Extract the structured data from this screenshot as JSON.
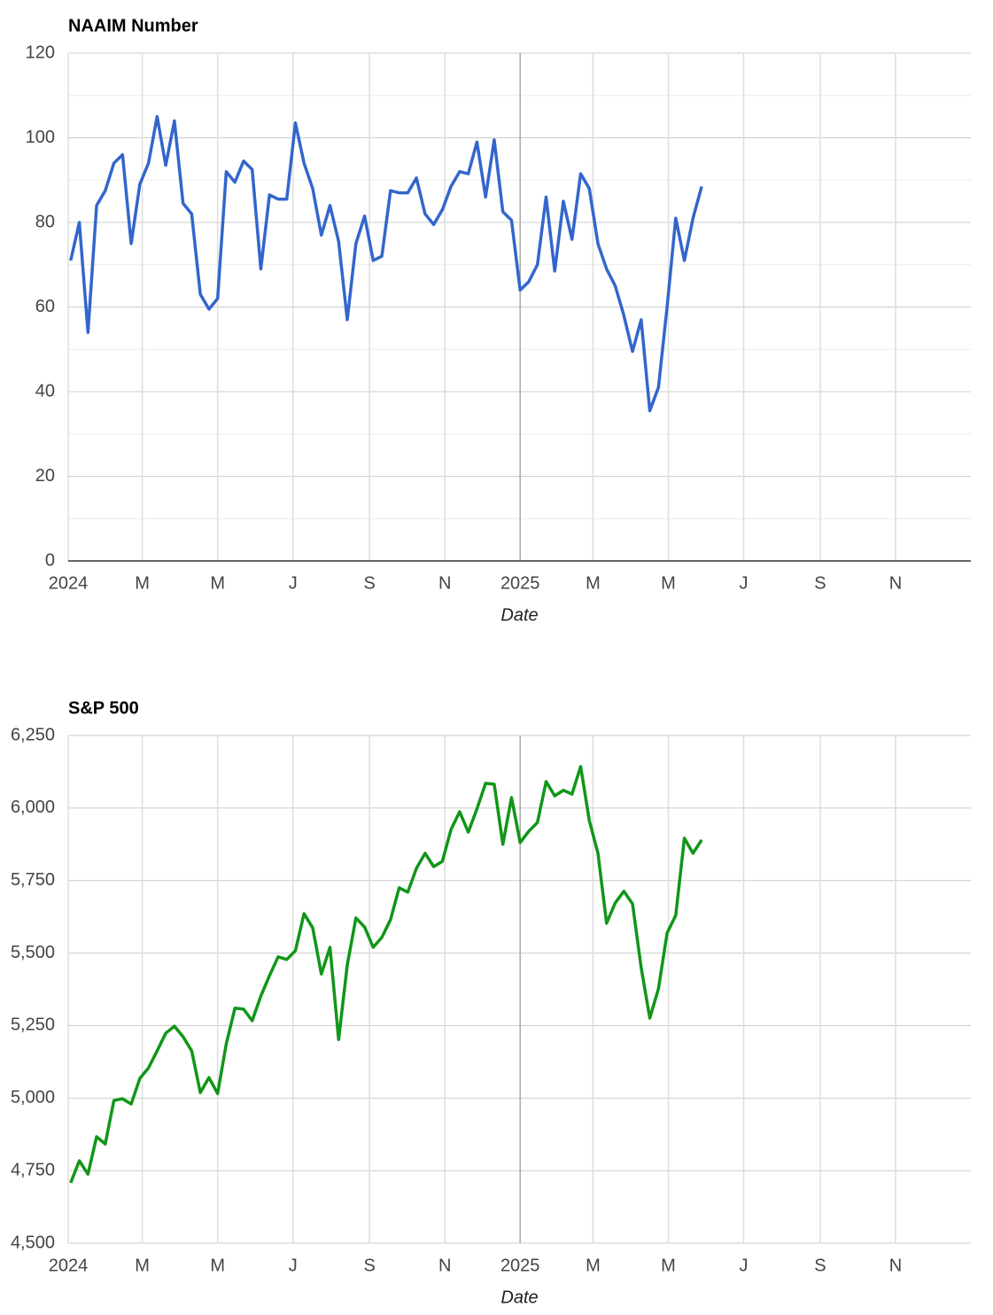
{
  "chart_data": [
    {
      "type": "line",
      "title": "NAAIM Number",
      "x_label": "Date",
      "x": [
        "2024-01-03",
        "2024-01-10",
        "2024-01-17",
        "2024-01-24",
        "2024-01-31",
        "2024-02-07",
        "2024-02-14",
        "2024-02-21",
        "2024-02-28",
        "2024-03-06",
        "2024-03-13",
        "2024-03-20",
        "2024-03-27",
        "2024-04-03",
        "2024-04-10",
        "2024-04-17",
        "2024-04-24",
        "2024-05-01",
        "2024-05-08",
        "2024-05-15",
        "2024-05-22",
        "2024-05-29",
        "2024-06-05",
        "2024-06-12",
        "2024-06-19",
        "2024-06-26",
        "2024-07-03",
        "2024-07-10",
        "2024-07-17",
        "2024-07-24",
        "2024-07-31",
        "2024-08-07",
        "2024-08-14",
        "2024-08-21",
        "2024-08-28",
        "2024-09-04",
        "2024-09-11",
        "2024-09-18",
        "2024-09-25",
        "2024-10-02",
        "2024-10-09",
        "2024-10-16",
        "2024-10-23",
        "2024-10-30",
        "2024-11-06",
        "2024-11-13",
        "2024-11-20",
        "2024-11-27",
        "2024-12-04",
        "2024-12-11",
        "2024-12-18",
        "2024-12-25",
        "2025-01-01",
        "2025-01-08",
        "2025-01-15",
        "2025-01-22",
        "2025-01-29",
        "2025-02-05",
        "2025-02-12",
        "2025-02-19",
        "2025-02-26",
        "2025-03-05",
        "2025-03-12",
        "2025-03-19",
        "2025-03-26",
        "2025-04-02",
        "2025-04-09",
        "2025-04-16",
        "2025-04-23",
        "2025-04-30",
        "2025-05-07",
        "2025-05-14",
        "2025-05-21",
        "2025-05-28"
      ],
      "series": [
        {
          "name": "NAAIM Number",
          "color": "#3366cc",
          "values": [
            71,
            80,
            54,
            84,
            87.5,
            94,
            96,
            75,
            89,
            94,
            105,
            93.5,
            104,
            84.5,
            82,
            63,
            59.5,
            62,
            92,
            89.5,
            94.5,
            92.5,
            69,
            86.5,
            85.5,
            85.5,
            103.5,
            94,
            88,
            77,
            84,
            75.5,
            57,
            75,
            81.5,
            71,
            72,
            87.5,
            87,
            87,
            90.5,
            82,
            79.5,
            83,
            88.5,
            92,
            91.5,
            99,
            86,
            99.5,
            82.5,
            80.5,
            64,
            66,
            70,
            86,
            68.5,
            85,
            76,
            91.5,
            88,
            75,
            69,
            65,
            58,
            49.5,
            57,
            35.5,
            41,
            60,
            81,
            71,
            81,
            88.5
          ]
        }
      ],
      "xlim": [
        "2024-01-01",
        "2026-01-01"
      ],
      "xticks": [
        {
          "value": "2024-01-01",
          "label": "2024"
        },
        {
          "value": "2024-03-01",
          "label": "M"
        },
        {
          "value": "2024-05-01",
          "label": "M"
        },
        {
          "value": "2024-07-01",
          "label": "J"
        },
        {
          "value": "2024-09-01",
          "label": "S"
        },
        {
          "value": "2024-11-01",
          "label": "N"
        },
        {
          "value": "2025-01-01",
          "label": "2025"
        },
        {
          "value": "2025-03-01",
          "label": "M"
        },
        {
          "value": "2025-05-01",
          "label": "M"
        },
        {
          "value": "2025-07-01",
          "label": "J"
        },
        {
          "value": "2025-09-01",
          "label": "S"
        },
        {
          "value": "2025-11-01",
          "label": "N"
        }
      ],
      "ylim": [
        0,
        120
      ],
      "yticks": [
        0,
        20,
        40,
        60,
        80,
        100,
        120
      ],
      "grid": true,
      "minor_grid": true
    },
    {
      "type": "line",
      "title": "S&P 500",
      "x_label": "Date",
      "x": [
        "2024-01-03",
        "2024-01-10",
        "2024-01-17",
        "2024-01-24",
        "2024-01-31",
        "2024-02-07",
        "2024-02-14",
        "2024-02-21",
        "2024-02-28",
        "2024-03-06",
        "2024-03-13",
        "2024-03-20",
        "2024-03-27",
        "2024-04-03",
        "2024-04-10",
        "2024-04-17",
        "2024-04-24",
        "2024-05-01",
        "2024-05-08",
        "2024-05-15",
        "2024-05-22",
        "2024-05-29",
        "2024-06-05",
        "2024-06-12",
        "2024-06-19",
        "2024-06-26",
        "2024-07-03",
        "2024-07-10",
        "2024-07-17",
        "2024-07-24",
        "2024-07-31",
        "2024-08-07",
        "2024-08-14",
        "2024-08-21",
        "2024-08-28",
        "2024-09-04",
        "2024-09-11",
        "2024-09-18",
        "2024-09-25",
        "2024-10-02",
        "2024-10-09",
        "2024-10-16",
        "2024-10-23",
        "2024-10-30",
        "2024-11-06",
        "2024-11-13",
        "2024-11-20",
        "2024-11-27",
        "2024-12-04",
        "2024-12-11",
        "2024-12-18",
        "2024-12-25",
        "2025-01-01",
        "2025-01-08",
        "2025-01-15",
        "2025-01-22",
        "2025-01-29",
        "2025-02-05",
        "2025-02-12",
        "2025-02-19",
        "2025-02-26",
        "2025-03-05",
        "2025-03-12",
        "2025-03-19",
        "2025-03-26",
        "2025-04-02",
        "2025-04-09",
        "2025-04-16",
        "2025-04-23",
        "2025-04-30",
        "2025-05-07",
        "2025-05-14",
        "2025-05-21",
        "2025-05-28"
      ],
      "series": [
        {
          "name": "S&P 500",
          "color": "#109618",
          "values": [
            4708,
            4784,
            4738,
            4867,
            4842,
            4992,
            4998,
            4980,
            5068,
            5104,
            5163,
            5224,
            5248,
            5212,
            5163,
            5019,
            5071,
            5016,
            5187,
            5310,
            5307,
            5267,
            5352,
            5422,
            5487,
            5478,
            5508,
            5636,
            5587,
            5428,
            5520,
            5202,
            5459,
            5621,
            5590,
            5520,
            5554,
            5615,
            5725,
            5710,
            5792,
            5844,
            5798,
            5816,
            5926,
            5987,
            5917,
            5997,
            6085,
            6082,
            5875,
            6036,
            5881,
            5920,
            5950,
            6091,
            6042,
            6061,
            6048,
            6143,
            5957,
            5844,
            5603,
            5673,
            5713,
            5670,
            5450,
            5276,
            5377,
            5569,
            5630,
            5896,
            5844,
            5890
          ]
        }
      ],
      "xlim": [
        "2024-01-01",
        "2026-01-01"
      ],
      "xticks": [
        {
          "value": "2024-01-01",
          "label": "2024"
        },
        {
          "value": "2024-03-01",
          "label": "M"
        },
        {
          "value": "2024-05-01",
          "label": "M"
        },
        {
          "value": "2024-07-01",
          "label": "J"
        },
        {
          "value": "2024-09-01",
          "label": "S"
        },
        {
          "value": "2024-11-01",
          "label": "N"
        },
        {
          "value": "2025-01-01",
          "label": "2025"
        },
        {
          "value": "2025-03-01",
          "label": "M"
        },
        {
          "value": "2025-05-01",
          "label": "M"
        },
        {
          "value": "2025-07-01",
          "label": "J"
        },
        {
          "value": "2025-09-01",
          "label": "S"
        },
        {
          "value": "2025-11-01",
          "label": "N"
        }
      ],
      "ylim": [
        4500,
        6250
      ],
      "yticks": [
        {
          "value": 4500,
          "label": "4,500"
        },
        {
          "value": 4750,
          "label": "4,750"
        },
        {
          "value": 5000,
          "label": "5,000"
        },
        {
          "value": 5250,
          "label": "5,250"
        },
        {
          "value": 5500,
          "label": "5,500"
        },
        {
          "value": 5750,
          "label": "5,750"
        },
        {
          "value": 6000,
          "label": "6,000"
        },
        {
          "value": 6250,
          "label": "6,250"
        }
      ],
      "grid": true,
      "minor_grid": false
    }
  ]
}
